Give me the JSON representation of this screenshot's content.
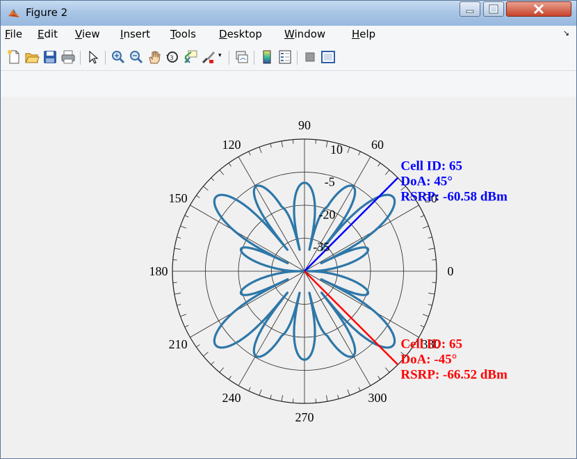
{
  "window": {
    "title": "Figure 2"
  },
  "menubar": {
    "items": [
      {
        "label": "File",
        "accel": "F"
      },
      {
        "label": "Edit",
        "accel": "E"
      },
      {
        "label": "View",
        "accel": "V"
      },
      {
        "label": "Insert",
        "accel": "I"
      },
      {
        "label": "Tools",
        "accel": "T"
      },
      {
        "label": "Desktop",
        "accel": "D"
      },
      {
        "label": "Window",
        "accel": "W"
      },
      {
        "label": "Help",
        "accel": "H"
      }
    ]
  },
  "toolbar": {
    "buttons": [
      "new-figure-icon",
      "open-file-icon",
      "save-icon",
      "print-icon",
      "edit-plot-pointer-icon",
      "zoom-in-icon",
      "zoom-out-icon",
      "pan-hand-icon",
      "rotate-3d-icon",
      "data-cursor-icon",
      "brush-icon",
      "link-plot-icon",
      "insert-colorbar-icon",
      "insert-legend-icon",
      "hide-plot-tools-icon",
      "show-plot-tools-icon"
    ]
  },
  "chart_data": {
    "type": "polar",
    "angle_ticks": [
      "0",
      "30",
      "60",
      "90",
      "120",
      "150",
      "180",
      "210",
      "240",
      "270",
      "300",
      "330"
    ],
    "radial_ticks": [
      "10",
      "-5",
      "-20",
      "-35"
    ],
    "r_range": [
      -50,
      10
    ],
    "grid": true,
    "series": [
      {
        "pattern": "beam pattern, four-lobe butterfly",
        "color": "#2e77a8"
      }
    ],
    "markers": [
      {
        "color": "#0000ff",
        "angle_deg": 45,
        "lines": [
          "Cell ID: 65",
          "DoA: 45°",
          "RSRP: -60.58 dBm"
        ]
      },
      {
        "color": "#ff0000",
        "angle_deg": -45,
        "lines": [
          "Cell ID: 65",
          "DoA: -45°",
          "RSRP: -66.52 dBm"
        ]
      }
    ]
  }
}
